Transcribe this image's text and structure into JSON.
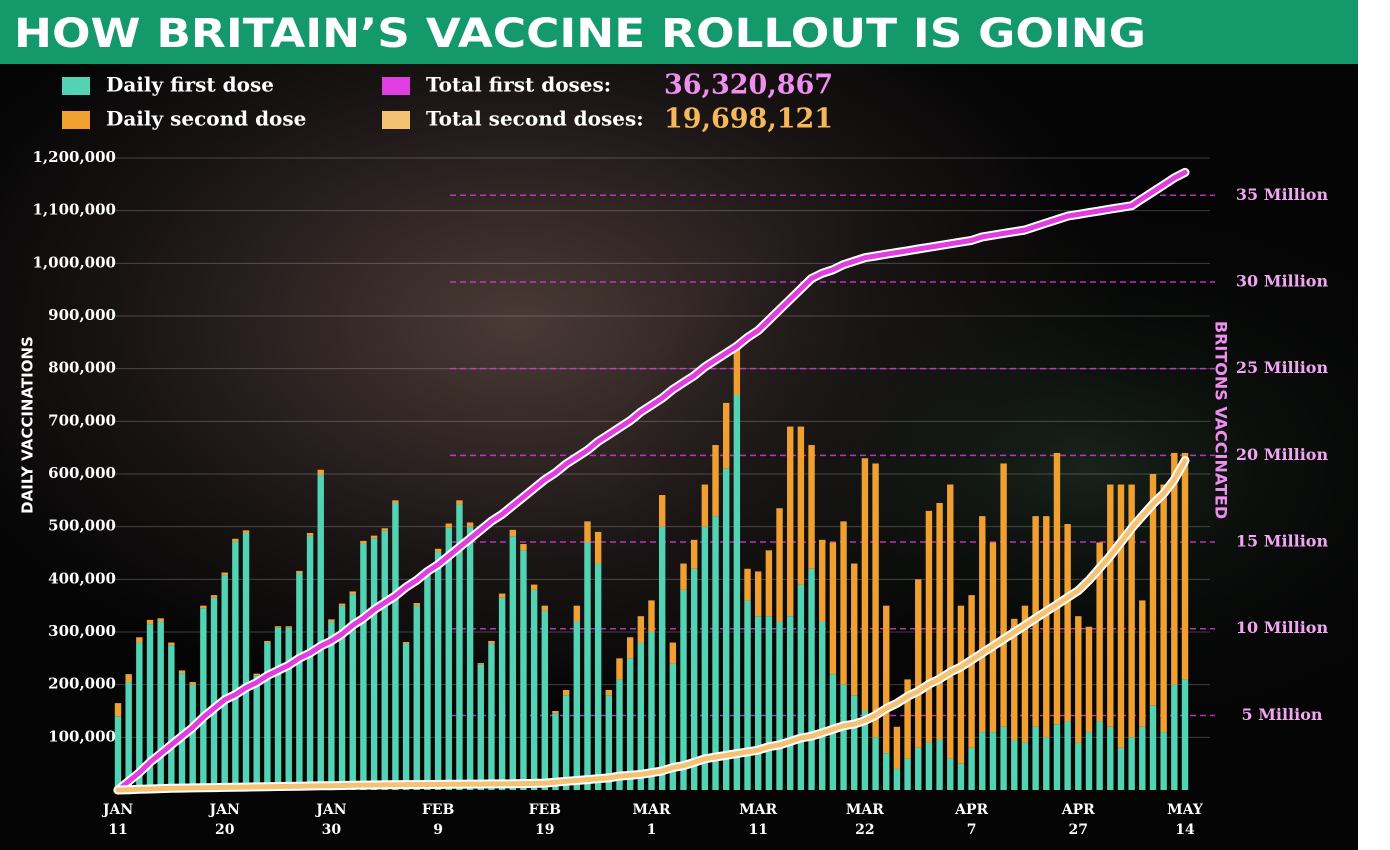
{
  "chart_data": {
    "type": "bar-line",
    "title": "HOW BRITAIN’S VACCINE ROLLOUT IS GOING",
    "y_label": "DAILY VACCINATIONS",
    "y2_label": "BRITONS VACCINATED",
    "legend": "top-left",
    "grid": true,
    "categories": [
      "JAN 11",
      null,
      null,
      null,
      null,
      null,
      null,
      null,
      null,
      null,
      "JAN 20",
      null,
      null,
      null,
      null,
      null,
      null,
      null,
      null,
      null,
      "JAN 30",
      null,
      null,
      null,
      null,
      null,
      null,
      null,
      null,
      null,
      "FEB 9",
      null,
      null,
      null,
      null,
      null,
      null,
      null,
      null,
      null,
      "FEB 19",
      null,
      null,
      null,
      null,
      null,
      null,
      null,
      null,
      null,
      "MAR 1",
      null,
      null,
      null,
      null,
      null,
      null,
      null,
      null,
      null,
      "MAR 11",
      null,
      null,
      null,
      null,
      null,
      null,
      null,
      null,
      null,
      "MAR 22",
      null,
      null,
      null,
      null,
      null,
      null,
      null,
      null,
      null,
      "APR 7",
      null,
      null,
      null,
      null,
      null,
      null,
      null,
      null,
      null,
      "APR 27",
      null,
      null,
      null,
      null,
      null,
      null,
      null,
      null,
      null,
      "MAY 14"
    ],
    "ylim": [
      0,
      1200000
    ],
    "yticks": [
      {
        "value": 100000,
        "label": "100,000"
      },
      {
        "value": 200000,
        "label": "200,000"
      },
      {
        "value": 300000,
        "label": "300,000"
      },
      {
        "value": 400000,
        "label": "400,000"
      },
      {
        "value": 500000,
        "label": "500,000"
      },
      {
        "value": 600000,
        "label": "600,000"
      },
      {
        "value": 700000,
        "label": "700,000"
      },
      {
        "value": 800000,
        "label": "800,000"
      },
      {
        "value": 900000,
        "label": "900,000"
      },
      {
        "value": 1000000,
        "label": "1,000,000"
      },
      {
        "value": 1100000,
        "label": "1,100,000"
      },
      {
        "value": 1200000,
        "label": "1,200,000"
      }
    ],
    "y2lim": [
      700000,
      37150000
    ],
    "y2ticks": [
      {
        "value": 5000000,
        "label": "5 Million"
      },
      {
        "value": 10000000,
        "label": "10 Million"
      },
      {
        "value": 15000000,
        "label": "15 Million"
      },
      {
        "value": 20000000,
        "label": "20 Million"
      },
      {
        "value": 25000000,
        "label": "25 Million"
      },
      {
        "value": 30000000,
        "label": "30 Million"
      },
      {
        "value": 35000000,
        "label": "35 Million"
      }
    ],
    "series": [
      {
        "name": "Daily first dose",
        "color": "#52d4b4",
        "kind": "bar",
        "values": [
          140000,
          205000,
          280000,
          315000,
          320000,
          275000,
          222000,
          200000,
          345000,
          365000,
          408000,
          472000,
          488000,
          218000,
          280000,
          308000,
          308000,
          412000,
          483000,
          598000,
          320000,
          350000,
          372000,
          468000,
          478000,
          492000,
          545000,
          278000,
          350000,
          410000,
          452000,
          498000,
          542000,
          500000,
          238000,
          278000,
          365000,
          482000,
          455000,
          380000,
          340000,
          145000,
          180000,
          320000,
          470000,
          430000,
          180000,
          210000,
          250000,
          280000,
          300000,
          500000,
          240000,
          380000,
          420000,
          500000,
          520000,
          610000,
          750000,
          360000,
          330000,
          330000,
          320000,
          330000,
          390000,
          420000,
          320000,
          220000,
          200000,
          180000,
          150000,
          100000,
          70000,
          40000,
          60000,
          80000,
          90000,
          95000,
          60000,
          50000,
          80000,
          110000,
          110000,
          120000,
          95000,
          90000,
          120000,
          100000,
          125000,
          130000,
          90000,
          110000,
          130000,
          120000,
          80000,
          100000,
          120000,
          160000,
          110000,
          200000,
          210000
        ]
      },
      {
        "name": "Daily second dose",
        "color": "#f0a031",
        "kind": "bar",
        "values": [
          25000,
          15000,
          10000,
          8000,
          6000,
          5000,
          5000,
          5000,
          5000,
          5000,
          5000,
          5000,
          5000,
          3000,
          3000,
          3000,
          3000,
          4000,
          5000,
          10000,
          4000,
          4000,
          5000,
          5000,
          5000,
          5000,
          5000,
          3000,
          5000,
          5000,
          6000,
          8000,
          8000,
          8000,
          3000,
          5000,
          8000,
          12000,
          12000,
          10000,
          10000,
          5000,
          10000,
          30000,
          40000,
          60000,
          10000,
          40000,
          40000,
          50000,
          60000,
          60000,
          40000,
          50000,
          55000,
          80000,
          135000,
          125000,
          90000,
          60000,
          85000,
          125000,
          215000,
          360000,
          300000,
          235000,
          155000,
          250000,
          310000,
          250000,
          480000,
          520000,
          280000,
          80000,
          150000,
          320000,
          440000,
          450000,
          520000,
          300000,
          290000,
          410000,
          360000,
          500000,
          230000,
          260000,
          400000,
          420000,
          515000,
          375000,
          240000,
          200000,
          340000,
          460000,
          500000,
          480000,
          240000,
          440000,
          470000,
          440000,
          430000
        ]
      },
      {
        "name": "Total first doses:",
        "color": "#e03ee0",
        "kind": "line",
        "axis": "y2",
        "headline": "36,320,867",
        "headline_color": "#f08ef0",
        "values": [
          700000,
          1200000,
          1700000,
          2300000,
          2800000,
          3300000,
          3800000,
          4300000,
          4900000,
          5400000,
          5900000,
          6200000,
          6600000,
          6900000,
          7300000,
          7600000,
          7900000,
          8300000,
          8600000,
          9000000,
          9300000,
          9700000,
          10200000,
          10600000,
          11100000,
          11500000,
          11900000,
          12400000,
          12800000,
          13300000,
          13700000,
          14200000,
          14700000,
          15200000,
          15700000,
          16200000,
          16600000,
          17100000,
          17600000,
          18100000,
          18600000,
          19000000,
          19500000,
          19900000,
          20300000,
          20800000,
          21200000,
          21600000,
          22000000,
          22500000,
          22900000,
          23300000,
          23800000,
          24200000,
          24600000,
          25100000,
          25500000,
          25900000,
          26300000,
          26800000,
          27200000,
          27800000,
          28400000,
          29000000,
          29600000,
          30200000,
          30500000,
          30700000,
          31000000,
          31200000,
          31400000,
          31500000,
          31600000,
          31700000,
          31800000,
          31900000,
          32000000,
          32100000,
          32200000,
          32300000,
          32400000,
          32600000,
          32700000,
          32800000,
          32900000,
          33000000,
          33200000,
          33400000,
          33600000,
          33800000,
          33900000,
          34000000,
          34100000,
          34200000,
          34300000,
          34400000,
          34800000,
          35200000,
          35600000,
          36000000,
          36320867
        ]
      },
      {
        "name": "Total second doses:",
        "color": "#f5c274",
        "kind": "line",
        "axis": "y2",
        "headline": "19,698,121",
        "headline_color": "#f5b85a",
        "values": [
          700000,
          720000,
          740000,
          760000,
          780000,
          800000,
          810000,
          820000,
          830000,
          840000,
          850000,
          860000,
          870000,
          880000,
          890000,
          900000,
          910000,
          920000,
          930000,
          940000,
          950000,
          960000,
          970000,
          980000,
          990000,
          1000000,
          1000000,
          1010000,
          1010000,
          1020000,
          1020000,
          1030000,
          1030000,
          1040000,
          1040000,
          1050000,
          1050000,
          1060000,
          1070000,
          1080000,
          1100000,
          1150000,
          1200000,
          1250000,
          1300000,
          1350000,
          1400000,
          1500000,
          1550000,
          1600000,
          1700000,
          1800000,
          2000000,
          2100000,
          2300000,
          2500000,
          2600000,
          2700000,
          2800000,
          2900000,
          3000000,
          3200000,
          3300000,
          3500000,
          3700000,
          3800000,
          4000000,
          4200000,
          4400000,
          4500000,
          4700000,
          5000000,
          5400000,
          5700000,
          6100000,
          6400000,
          6800000,
          7100000,
          7500000,
          7800000,
          8200000,
          8600000,
          9000000,
          9400000,
          9800000,
          10200000,
          10600000,
          11000000,
          11400000,
          11800000,
          12200000,
          12800000,
          13500000,
          14200000,
          15000000,
          15800000,
          16500000,
          17200000,
          17800000,
          18600000,
          19698121
        ]
      }
    ]
  }
}
